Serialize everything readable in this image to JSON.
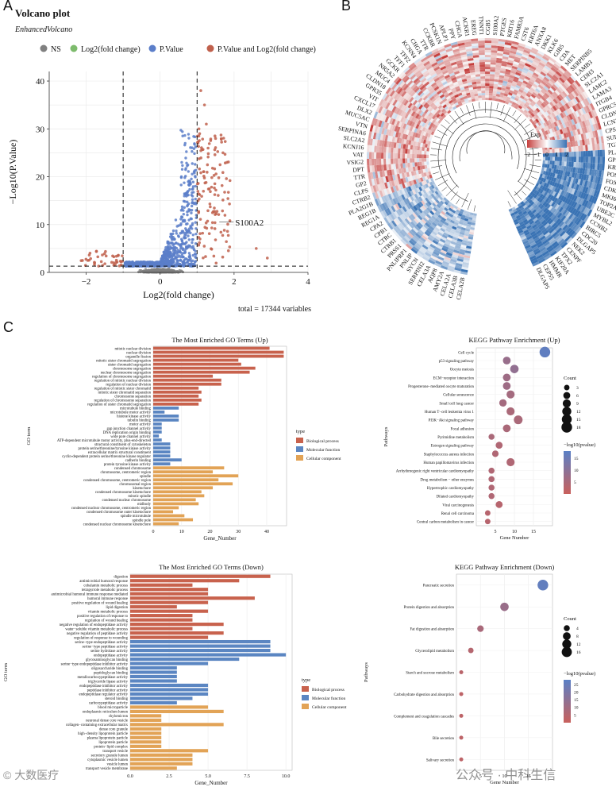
{
  "panel_letters": [
    "A",
    "B",
    "C"
  ],
  "watermarks": {
    "left": "© 大数医疗",
    "right": "公众号 · 中科生信"
  },
  "colors": {
    "ns": "#808080",
    "fc": "#7dbb6c",
    "pv": "#5b7ec9",
    "both": "#c0604c",
    "bp": "#c8624d",
    "mf": "#5b86c2",
    "cc": "#e2a356",
    "heat_low": "#c5403e",
    "heat_high": "#3a73b4"
  },
  "chart_data": [
    {
      "id": "volcano",
      "type": "scatter",
      "title": "Volcano plot",
      "subtitle": "EnhancedVolcano",
      "legend": [
        "NS",
        "Log2(fold change)",
        "P.Value",
        "P.Value and Log2(fold change)"
      ],
      "xlabel": "Log2(fold change)",
      "ylabel": "−Log10(P.Value)",
      "xlim": [
        -3,
        4
      ],
      "ylim": [
        0,
        42
      ],
      "xticks": [
        -2,
        0,
        2,
        4
      ],
      "yticks": [
        0,
        10,
        20,
        30,
        40
      ],
      "fc_cutoff": 1,
      "p_cutoff_log10": 1.3,
      "label_gene": "S100A2",
      "label_point": [
        1.6,
        10.5
      ],
      "footer": "total = 17344 variables"
    },
    {
      "id": "circular_heatmap",
      "type": "heatmap",
      "legend_title": "Exp",
      "legend_ticks": [
        "−2",
        "−1",
        "0",
        "1",
        "2"
      ],
      "genes": [
        "CELA2B",
        "CELA3B",
        "CELA2A",
        "AMY2A",
        "AQP8",
        "CELA3A",
        "SERPINI2",
        "SYCN",
        "PNLIP",
        "PNLIPRP1",
        "PRSS1",
        "CTRB1",
        "CTRC",
        "CPB1",
        "CPA2",
        "REG1A",
        "REG1B",
        "PLA2G1B",
        "CTRB2",
        "CLPS",
        "GP2",
        "TTR",
        "DPT",
        "VSIG2",
        "VAT",
        "KCNJ16",
        "SLC2A2",
        "SERPINA6",
        "VTN",
        "MUC5AC",
        "DLX2",
        "CXCL17",
        "VIT",
        "GPR35",
        "CLDN18",
        "MUC4",
        "NR5A2",
        "GCKR",
        "TFF1",
        "TFF2",
        "KCNN4",
        "CHGA",
        "TTR",
        "CCKBR",
        "PCSK1N",
        "APLP1",
        "PPY",
        "CHGA",
        "ACKR1",
        "EREG",
        "TNNT1",
        "CGB5",
        "S100A2",
        "PTGES",
        "KRT16",
        "FAM83A",
        "CST6",
        "KRT6A",
        "ANXA8",
        "DKK1",
        "KLK6",
        "GJB5",
        "CDA",
        "MET",
        "SERPINB5",
        "LAMB3",
        "CDH3",
        "SLC2A1",
        "LAMC2",
        "LAMA3",
        "ITGB4",
        "GPRC5A",
        "CLDN1",
        "LCN2",
        "CPS1",
        "SULF1",
        "TGM1",
        "PLAU",
        "GPX2",
        "KRT19",
        "POSTN",
        "FOXM1",
        "CDK1",
        "MKI67",
        "TOP2A",
        "UBE2C",
        "MYBL2",
        "CCNB2",
        "BIRC5",
        "CDC20",
        "DLGAP5",
        "NEK2",
        "CENPF",
        "TPX2",
        "KIF20A",
        "HMMR",
        "CEP55",
        "DLGAP5"
      ]
    },
    {
      "id": "go_up",
      "type": "bar",
      "title": "The Most Enriched GO Terms (Up)",
      "ylabel": "GO term",
      "xlabel": "Gene_Number",
      "xticks": [
        0,
        10,
        20,
        30,
        40
      ],
      "xlim": [
        0,
        47
      ],
      "legend_title": "type",
      "legend": [
        "Biological process",
        "Molecular function",
        "Cellular component"
      ],
      "categories": [
        "mitotic nuclear division",
        "nuclear division",
        "organelle fission",
        "mitotic sister chromatid segregation",
        "sister chromatid segregation",
        "chromosome segregation",
        "nuclear chromosome segregation",
        "regulation of chromosome segregation",
        "regulation of mitotic nuclear division",
        "regulation of nuclear division",
        "regulation of mitotic sister chromatid",
        "mitotic sister chromatid separation",
        "chromosome separation",
        "regulation of chromosome separation",
        "regulation of sister chromatid segregation",
        "microtubule binding",
        "microtubule motor activity",
        "histone kinase activity",
        "tubulin binding",
        "motor activity",
        "gap junction channel activity",
        "DNA replication origin binding",
        "wide pore channel activity",
        "ATP-dependent microtubule motor activity, plus-end-directed",
        "structural constituent of cytoskeleton",
        "protein serine/threonine/tyrosine kinase activity",
        "extracellular matrix structural constituent",
        "cyclin-dependent protein serine/threonine kinase regulator",
        "cadherin binding",
        "protein tyrosine kinase activity",
        "condensed chromosome",
        "chromosome, centromeric region",
        "spindle",
        "condensed chromosome, centromeric region",
        "chromosomal region",
        "kinetochore",
        "condensed chromosome kinetochore",
        "mitotic spindle",
        "condensed nuclear chromosome",
        "midbody",
        "condensed nuclear chromosome, centromeric region",
        "condensed chromosome outer kinetochore",
        "spindle microtubule",
        "spindle pole",
        "condensed nuclear chromosome kinetochore"
      ],
      "types": [
        "bp",
        "bp",
        "bp",
        "bp",
        "bp",
        "bp",
        "bp",
        "bp",
        "bp",
        "bp",
        "bp",
        "bp",
        "bp",
        "bp",
        "bp",
        "mf",
        "mf",
        "mf",
        "mf",
        "mf",
        "mf",
        "mf",
        "mf",
        "mf",
        "mf",
        "mf",
        "mf",
        "mf",
        "mf",
        "mf",
        "cc",
        "cc",
        "cc",
        "cc",
        "cc",
        "cc",
        "cc",
        "cc",
        "cc",
        "cc",
        "cc",
        "cc",
        "cc",
        "cc",
        "cc"
      ],
      "values": [
        41,
        46,
        46,
        30,
        31,
        36,
        34,
        21,
        24,
        24,
        16,
        17,
        16,
        17,
        16,
        9,
        4,
        9,
        9,
        3,
        3,
        3,
        2,
        3,
        6,
        6,
        6,
        6,
        10,
        6,
        25,
        21,
        30,
        23,
        28,
        21,
        17,
        18,
        15,
        16,
        9,
        7,
        11,
        14,
        9
      ]
    },
    {
      "id": "kegg_up",
      "type": "scatter",
      "title": "KEGG Pathway Enrichment (Up)",
      "ylabel": "Pathways",
      "xlabel": "Gene Number",
      "xticks": [
        5,
        10,
        15
      ],
      "xlim": [
        0,
        20
      ],
      "size_legend_title": "Count",
      "size_legend": [
        3,
        6,
        9,
        12,
        15,
        18
      ],
      "color_legend_title": "−log10(pvalue)",
      "color_legend_ticks": [
        15,
        10,
        5
      ],
      "categories": [
        "Cell cycle",
        "p53 signaling pathway",
        "Oocyte meiosis",
        "ECM−receptor interaction",
        "Progesterone−mediated oocyte maturation",
        "Cellular senescence",
        "Small cell lung cancer",
        "Human T−cell leukemia virus 1",
        "PI3K−Akt signaling pathway",
        "Focal adhesion",
        "Pyrimidine metabolism",
        "Estrogen signaling pathway",
        "Staphylococcus aureus infection",
        "Human papillomavirus infection",
        "Arrhythmogenic right ventricular cardiomyopathy",
        "Drug metabolism − other enzymes",
        "Hypertrophic cardiomyopathy",
        "Dilated cardiomyopathy",
        "Viral carcinogenesis",
        "Renal cell carcinoma",
        "Central carbon metabolism in cancer"
      ],
      "counts": [
        18,
        8,
        10,
        8,
        8,
        9,
        7,
        9,
        11,
        8,
        4,
        6,
        5,
        9,
        4,
        4,
        4,
        4,
        6,
        3,
        3
      ],
      "neglog10p": [
        17,
        8,
        9,
        7,
        7,
        6,
        6,
        5,
        5,
        5,
        5,
        4,
        4,
        4,
        4,
        4,
        4,
        4,
        3,
        3,
        3
      ]
    },
    {
      "id": "go_down",
      "type": "bar",
      "title": "The Most Enriched GO Terms (Down)",
      "ylabel": "GO term",
      "xlabel": "Gene_Number",
      "xticks": [
        0.0,
        2.5,
        5.0,
        7.5,
        10.0
      ],
      "xlim": [
        0,
        10.4
      ],
      "legend_title": "type",
      "legend": [
        "Biological process",
        "Molecular function",
        "Cellular component"
      ],
      "categories": [
        "digestion",
        "antimicrobial humoral response",
        "cobalamin metabolic process",
        "tetrapyrrole metabolic process",
        "antimicrobial humoral immune response mediated",
        "humoral immune response",
        "positive regulation of wound healing",
        "lipid digestion",
        "vitamin metabolic process",
        "positive regulation of response to",
        "regulation of wound healing",
        "negative regulation of endopeptidase activity",
        "water−soluble vitamin metabolic process",
        "negative regulation of peptidase activity",
        "regulation of response to wounding",
        "serine−type endopeptidase activity",
        "serine−type peptidase activity",
        "serine hydrolase activity",
        "endopeptidase activity",
        "glycosaminoglycan binding",
        "serine−type endopeptidase inhibitor activity",
        "oligosaccharide binding",
        "peptidoglycan binding",
        "metallocarboxypeptidase activity",
        "triglyceride lipase activity",
        "endopeptidase inhibitor activity",
        "peptidase inhibitor activity",
        "endopeptidase regulator activity",
        "steroid binding",
        "carboxypeptidase activity",
        "blood microparticle",
        "endoplasmic reticulum lumen",
        "chylomicron",
        "neuronal dense core vesicle",
        "collagen−containing extracellular matrix",
        "dense core granule",
        "high−density lipoprotein particle",
        "plasma lipoprotein particle",
        "lipoprotein particle",
        "protein−lipid complex",
        "transport vesicle",
        "secretory granule lumen",
        "cytoplasmic vesicle lumen",
        "vesicle lumen",
        "transport vesicle membrane"
      ],
      "types": [
        "bp",
        "bp",
        "bp",
        "bp",
        "bp",
        "bp",
        "bp",
        "bp",
        "bp",
        "bp",
        "bp",
        "bp",
        "bp",
        "bp",
        "bp",
        "mf",
        "mf",
        "mf",
        "mf",
        "mf",
        "mf",
        "mf",
        "mf",
        "mf",
        "mf",
        "mf",
        "mf",
        "mf",
        "mf",
        "mf",
        "cc",
        "cc",
        "cc",
        "cc",
        "cc",
        "cc",
        "cc",
        "cc",
        "cc",
        "cc",
        "cc",
        "cc",
        "cc",
        "cc",
        "cc"
      ],
      "values": [
        9,
        7,
        4,
        5,
        5,
        8,
        5,
        3,
        5,
        4,
        4,
        6,
        4,
        6,
        5,
        9,
        9,
        9,
        10,
        7,
        5,
        3,
        3,
        3,
        3,
        5,
        5,
        5,
        4,
        3,
        5,
        6,
        2,
        2,
        6,
        2,
        2,
        2,
        2,
        2,
        5,
        4,
        4,
        4,
        3
      ]
    },
    {
      "id": "kegg_down",
      "type": "scatter",
      "title": "KEGG Pathway Enrichment (Down)",
      "ylabel": "Pathways",
      "xlabel": "Gene Number",
      "xticks": [
        5,
        10,
        15
      ],
      "xlim": [
        0,
        20
      ],
      "size_legend_title": "Count",
      "size_legend": [
        4,
        8,
        12,
        16
      ],
      "color_legend_title": "−log10(pvalue)",
      "color_legend_ticks": [
        25,
        20,
        15,
        10,
        5
      ],
      "categories": [
        "Pancreatic secretion",
        "Protein digestion and absorption",
        "Fat digestion and absorption",
        "Glycerolipid metabolism",
        "Starch and sucrose metabolism",
        "Carbohydrate digestion and absorption",
        "Complement and coagulation cascades",
        "Bile secretion",
        "Salivary secretion"
      ],
      "counts": [
        18,
        10,
        5,
        3,
        1,
        1,
        1,
        1,
        1
      ],
      "neglog10p": [
        26,
        12,
        8,
        5,
        4,
        3,
        3,
        3,
        3
      ]
    }
  ]
}
